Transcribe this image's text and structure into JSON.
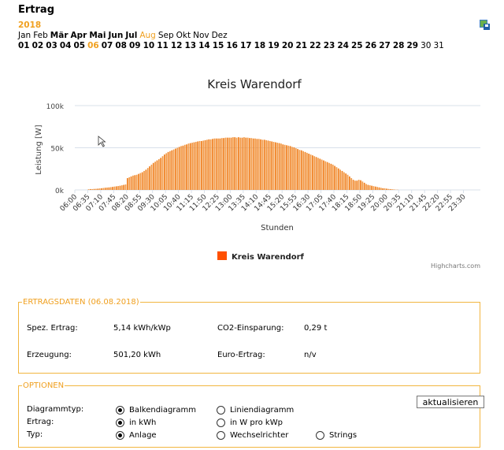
{
  "header": {
    "title": "Ertrag",
    "year": "2018"
  },
  "months": [
    {
      "label": "Jan",
      "style": "n"
    },
    {
      "label": "Feb",
      "style": "n"
    },
    {
      "label": "Mär",
      "style": "b"
    },
    {
      "label": "Apr",
      "style": "b"
    },
    {
      "label": "Mai",
      "style": "b"
    },
    {
      "label": "Jun",
      "style": "b"
    },
    {
      "label": "Jul",
      "style": "b"
    },
    {
      "label": "Aug",
      "style": "sel"
    },
    {
      "label": "Sep",
      "style": "n"
    },
    {
      "label": "Okt",
      "style": "n"
    },
    {
      "label": "Nov",
      "style": "n"
    },
    {
      "label": "Dez",
      "style": "n"
    }
  ],
  "days": {
    "labels": [
      "01",
      "02",
      "03",
      "04",
      "05",
      "06",
      "07",
      "08",
      "09",
      "10",
      "11",
      "12",
      "13",
      "14",
      "15",
      "16",
      "17",
      "18",
      "19",
      "20",
      "21",
      "22",
      "23",
      "24",
      "25",
      "26",
      "27",
      "28",
      "29",
      "30",
      "31"
    ],
    "selected": "06",
    "available_until": 29
  },
  "chart_data": {
    "type": "bar",
    "title": "Kreis Warendorf",
    "xlabel": "Stunden",
    "ylabel": "Leistung [W]",
    "ylim": [
      0,
      100000
    ],
    "yticks": [
      "0k",
      "50k",
      "100k"
    ],
    "ytick_values": [
      0,
      50000,
      100000
    ],
    "x_start": "06:00",
    "x_step_minutes": 5,
    "xtick_labels": [
      "06:00",
      "06:35",
      "07:10",
      "07:45",
      "08:20",
      "08:55",
      "09:30",
      "10:05",
      "10:40",
      "11:15",
      "11:50",
      "12:25",
      "13:00",
      "13:35",
      "14:10",
      "14:45",
      "15:20",
      "15:55",
      "16:30",
      "17:05",
      "17:40",
      "18:15",
      "18:50",
      "19:25",
      "20:00",
      "20:35",
      "21:10",
      "21:45",
      "22:20",
      "22:55",
      "23:30"
    ],
    "values_kW": [
      0,
      0,
      0,
      0,
      0,
      0,
      0,
      0.8,
      1,
      1,
      1.2,
      1.3,
      1.5,
      1.8,
      2,
      2.3,
      2.6,
      2.8,
      3,
      3.3,
      3.6,
      4,
      4.3,
      4.6,
      5,
      5.5,
      6,
      6.5,
      14,
      15,
      16,
      17,
      17.5,
      18,
      19,
      20,
      21,
      22.5,
      24,
      26,
      28,
      30,
      32,
      33.5,
      35,
      36.5,
      38,
      40,
      42,
      43.5,
      45,
      46,
      47,
      48,
      49,
      50,
      51,
      52,
      52.5,
      53.5,
      54,
      55,
      55.5,
      56,
      56.5,
      57,
      57.5,
      58,
      58,
      58.5,
      59,
      59.5,
      60,
      60,
      60.5,
      61,
      61,
      61,
      61,
      61.5,
      61.5,
      62,
      62,
      62,
      62,
      62.5,
      62.5,
      62,
      62.5,
      62,
      62,
      62.5,
      62,
      62,
      61.5,
      61.5,
      61,
      61,
      60.5,
      60.5,
      60,
      59.5,
      59.5,
      59,
      58.5,
      58,
      57.5,
      57,
      56.5,
      56,
      55.5,
      55,
      54,
      53.5,
      53,
      52.5,
      52,
      51,
      50.5,
      49.5,
      48.5,
      47.5,
      47,
      46,
      45,
      44,
      43,
      42,
      41,
      40,
      39,
      38,
      37,
      36,
      35,
      34,
      33,
      32,
      31,
      30,
      28.5,
      27,
      25.5,
      24,
      22.5,
      21,
      19.5,
      18,
      16,
      14,
      12,
      11,
      11,
      12,
      11.5,
      10,
      8.5,
      7,
      6,
      5.5,
      5,
      4.5,
      4,
      3.5,
      3,
      2.5,
      2,
      2,
      1.5,
      1.2,
      1,
      0.8,
      0.5,
      0.3,
      0.2,
      0,
      0,
      0,
      0,
      0,
      0,
      0,
      0,
      0,
      0,
      0,
      0,
      0,
      0,
      0,
      0,
      0,
      0,
      0,
      0,
      0,
      0,
      0,
      0,
      0,
      0,
      0,
      0,
      0,
      0,
      0,
      0,
      0,
      0,
      0,
      0,
      0,
      0,
      0,
      0,
      0
    ],
    "legend": "Kreis Warendorf",
    "legend_position": "bottom-center",
    "credits": "Highcharts.com",
    "colors": {
      "bar": "#f08020",
      "legend": "#ff5000",
      "grid": "#d8e0ea"
    }
  },
  "ertragsdaten": {
    "legend": "ERTRAGSDATEN (06.08.2018)",
    "spez_label": "Spez. Ertrag:",
    "spez_value": "5,14 kWh/kWp",
    "co2_label": "CO2-Einsparung:",
    "co2_value": "0,29 t",
    "erzeugung_label": "Erzeugung:",
    "erzeugung_value": "501,20 kWh",
    "euro_label": "Euro-Ertrag:",
    "euro_value": "n/v"
  },
  "optionen": {
    "legend": "OPTIONEN",
    "refresh": "aktualisieren",
    "diagrammtyp": {
      "label": "Diagrammtyp:",
      "opt1": "Balkendiagramm",
      "opt2": "Liniendiagramm",
      "selected": 1
    },
    "ertrag": {
      "label": "Ertrag:",
      "opt1": "in kWh",
      "opt2": "in W pro kWp",
      "selected": 1
    },
    "typ": {
      "label": "Typ:",
      "opt1": "Anlage",
      "opt2": "Wechselrichter",
      "opt3": "Strings",
      "selected": 1
    }
  }
}
